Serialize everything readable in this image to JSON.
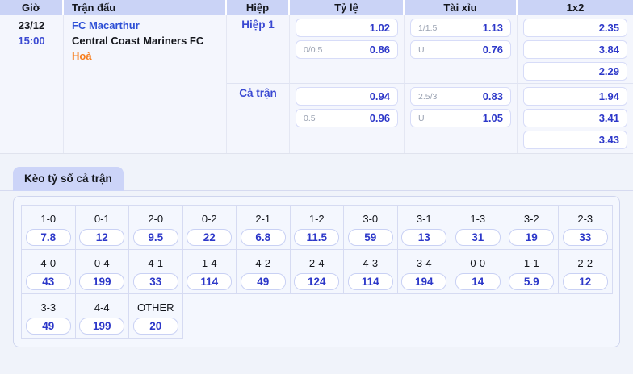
{
  "table": {
    "headers": [
      "Giờ",
      "Trận đấu",
      "Hiệp",
      "Tỷ lệ",
      "Tài xỉu",
      "1x2"
    ],
    "match": {
      "date": "23/12",
      "time": "15:00",
      "home_team": "FC Macarthur",
      "away_team": "Central Coast Mariners FC",
      "status": "Hoà"
    },
    "sections": [
      {
        "label": "Hiệp 1",
        "ty_le": [
          {
            "label": "",
            "value": "1.02"
          },
          {
            "label": "0/0.5",
            "value": "0.86"
          }
        ],
        "tai_xiu": [
          {
            "label": "1/1.5",
            "value": "1.13"
          },
          {
            "label": "U",
            "value": "0.76"
          }
        ],
        "one_x_two": [
          "2.35",
          "3.84",
          "2.29"
        ]
      },
      {
        "label": "Cả trận",
        "ty_le": [
          {
            "label": "",
            "value": "0.94"
          },
          {
            "label": "0.5",
            "value": "0.96"
          }
        ],
        "tai_xiu": [
          {
            "label": "2.5/3",
            "value": "0.83"
          },
          {
            "label": "U",
            "value": "1.05"
          }
        ],
        "one_x_two": [
          "1.94",
          "3.41",
          "3.43"
        ]
      }
    ]
  },
  "score_grid": {
    "tab_label": "Kèo tỷ số cả trận",
    "columns": 11,
    "rows": [
      [
        {
          "score": "1-0",
          "odds": "7.8"
        },
        {
          "score": "0-1",
          "odds": "12"
        },
        {
          "score": "2-0",
          "odds": "9.5"
        },
        {
          "score": "0-2",
          "odds": "22"
        },
        {
          "score": "2-1",
          "odds": "6.8"
        },
        {
          "score": "1-2",
          "odds": "11.5"
        },
        {
          "score": "3-0",
          "odds": "59"
        },
        {
          "score": "3-1",
          "odds": "13"
        },
        {
          "score": "1-3",
          "odds": "31"
        },
        {
          "score": "3-2",
          "odds": "19"
        },
        {
          "score": "2-3",
          "odds": "33"
        }
      ],
      [
        {
          "score": "4-0",
          "odds": "43"
        },
        {
          "score": "0-4",
          "odds": "199"
        },
        {
          "score": "4-1",
          "odds": "33"
        },
        {
          "score": "1-4",
          "odds": "114"
        },
        {
          "score": "4-2",
          "odds": "49"
        },
        {
          "score": "2-4",
          "odds": "124"
        },
        {
          "score": "4-3",
          "odds": "114"
        },
        {
          "score": "3-4",
          "odds": "194"
        },
        {
          "score": "0-0",
          "odds": "14"
        },
        {
          "score": "1-1",
          "odds": "5.9"
        },
        {
          "score": "2-2",
          "odds": "12"
        }
      ],
      [
        {
          "score": "3-3",
          "odds": "49"
        },
        {
          "score": "4-4",
          "odds": "199"
        },
        {
          "score": "OTHER",
          "odds": "20"
        }
      ]
    ]
  },
  "colors": {
    "accent_blue": "#2d38c9",
    "link_blue": "#2d4fd6",
    "section_blue": "#3a49d2",
    "orange": "#f77e1e",
    "header_bg": "#cad3f6",
    "tab_bg": "#ccd4f8",
    "panel_bg": "#f4f7fe",
    "page_bg": "#f0f3fa",
    "body_bg": "#f4f6fd",
    "box_border": "#d7dcf8",
    "grid_border": "#d6dbf2",
    "text_dark": "#14161c",
    "label_gray": "#99a1b1"
  }
}
